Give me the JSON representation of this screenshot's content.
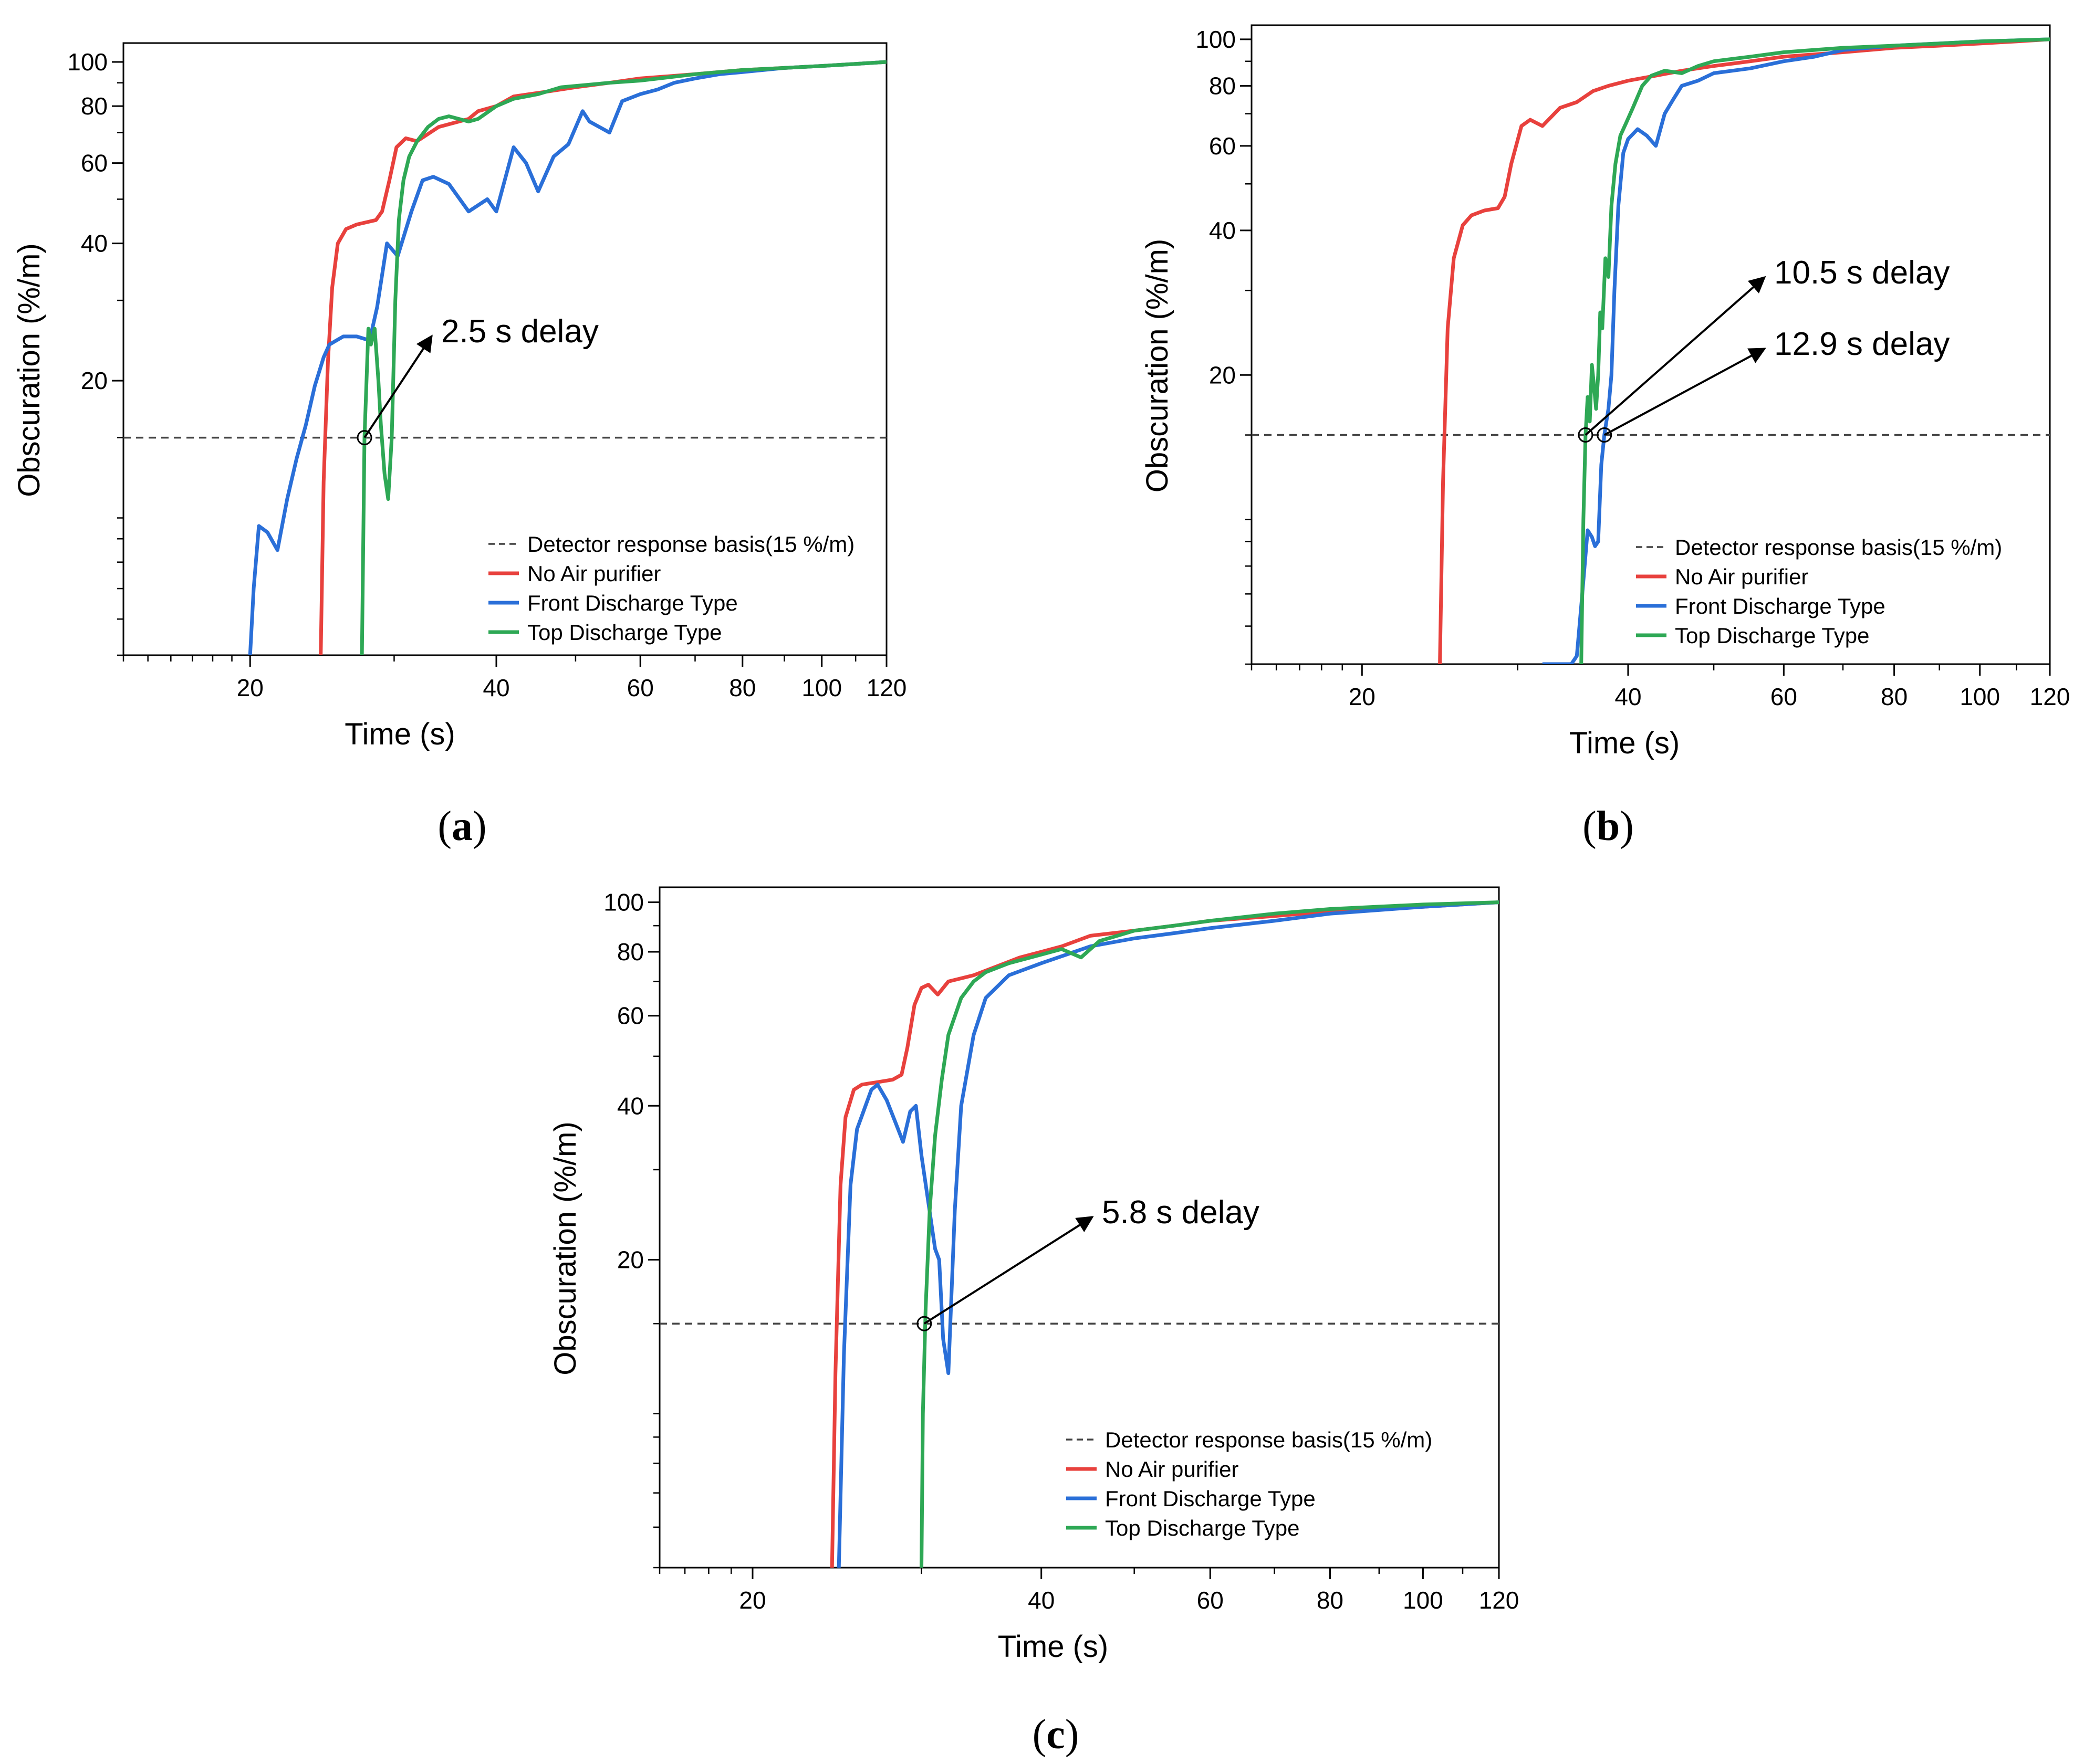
{
  "chart_data": [
    {
      "panel": "(a)",
      "type": "line",
      "xscale": "log",
      "yscale": "log",
      "xlim": [
        14,
        120
      ],
      "ylim": [
        5,
        110
      ],
      "xlabel": "Time (s)",
      "ylabel": "Obscuration (%/m)",
      "xticks": [
        20,
        40,
        60,
        80,
        100,
        120
      ],
      "yticks": [
        20,
        40,
        60,
        80,
        100
      ],
      "legend": "bottom-right",
      "threshold": {
        "name": "Detector response basis(15 %/m)",
        "value": 15
      },
      "annotations": [
        {
          "text": "2.5 s delay",
          "point": [
            27.6,
            15
          ],
          "text_at": [
            32,
            20
          ]
        }
      ],
      "series": [
        {
          "name": "No Air purifier",
          "color": "#e8413d",
          "x": [
            24.4,
            24.6,
            24.9,
            25.2,
            25.6,
            26.2,
            27.0,
            28.5,
            29.0,
            29.6,
            30.2,
            31.0,
            32,
            34,
            37,
            38,
            40,
            42,
            46,
            50,
            55,
            60,
            70,
            80,
            90,
            100,
            110,
            120
          ],
          "y": [
            5,
            12,
            22,
            32,
            40,
            43,
            44,
            45,
            47,
            55,
            65,
            68,
            67,
            72,
            75,
            78,
            80,
            84,
            86,
            88,
            90,
            92,
            94,
            96,
            97,
            98,
            99,
            100
          ]
        },
        {
          "name": "Front Discharge Type",
          "color": "#2a6fd8",
          "x": [
            20.0,
            20.2,
            20.5,
            21.0,
            21.6,
            22.2,
            22.8,
            23.4,
            24.0,
            24.6,
            25.0,
            26.0,
            27.0,
            28.0,
            28.6,
            29.4,
            30.3,
            31.5,
            32.5,
            33.5,
            35.0,
            37.0,
            39.0,
            40.0,
            42.0,
            43.5,
            45.0,
            47.0,
            49.0,
            51.0,
            52.0,
            55.0,
            57.0,
            60.0,
            63.0,
            66.0,
            70.0,
            75.0,
            80.0,
            90.0,
            100.0,
            110.0,
            120.0
          ],
          "y": [
            5,
            7,
            9.6,
            9.3,
            8.5,
            11,
            13.5,
            16,
            19.5,
            22.5,
            24,
            25,
            25,
            24.5,
            29,
            40,
            37.5,
            47,
            55,
            56,
            54,
            47,
            50,
            47,
            65,
            60,
            52,
            62,
            66,
            78,
            74,
            70,
            82,
            85,
            87,
            90,
            92,
            94,
            95,
            97,
            98,
            99,
            100
          ]
        },
        {
          "name": "Top Discharge Type",
          "color": "#2ea855",
          "x": [
            27.4,
            27.6,
            27.9,
            28.1,
            28.4,
            28.7,
            28.9,
            29.2,
            29.5,
            29.8,
            30.1,
            30.4,
            30.8,
            31.3,
            32,
            33,
            34,
            35,
            37,
            38,
            40,
            42,
            45,
            48,
            55,
            60,
            70,
            80,
            90,
            100,
            110,
            120
          ],
          "y": [
            5,
            15,
            26,
            24,
            26,
            20,
            16,
            12.5,
            11,
            15,
            30,
            45,
            55,
            62,
            67,
            72,
            75,
            76,
            74,
            75,
            80,
            83,
            85,
            88,
            90,
            91,
            94,
            96,
            97,
            98,
            99,
            100
          ]
        }
      ]
    },
    {
      "panel": "(b)",
      "type": "line",
      "xscale": "log",
      "yscale": "log",
      "xlim": [
        15,
        120
      ],
      "ylim": [
        5,
        107
      ],
      "xlabel": "Time (s)",
      "ylabel": "Obscuration (%/m)",
      "xticks": [
        20,
        40,
        60,
        80,
        100,
        120
      ],
      "yticks": [
        20,
        40,
        60,
        80,
        100
      ],
      "legend": "bottom-right",
      "threshold": {
        "name": "Detector response basis(15 %/m)",
        "value": 15
      },
      "annotations": [
        {
          "text": "10.5 s delay",
          "point": [
            35.8,
            15
          ],
          "text_at": [
            50,
            25
          ]
        },
        {
          "text": "12.9 s delay",
          "point": [
            37.6,
            15
          ],
          "text_at": [
            50,
            18
          ]
        }
      ],
      "series": [
        {
          "name": "No Air purifier",
          "color": "#e8413d",
          "x": [
            24.5,
            24.7,
            25.0,
            25.4,
            26.0,
            26.6,
            27.5,
            28.5,
            29.0,
            29.5,
            30.3,
            31.0,
            32.0,
            33.5,
            35.0,
            36.5,
            38.0,
            40.0,
            43.0,
            46.0,
            50.0,
            55.0,
            60.0,
            70.0,
            80.0,
            90.0,
            100.0,
            110.0,
            120.0
          ],
          "y": [
            5,
            12,
            25,
            35,
            41,
            43,
            44,
            44.5,
            47,
            55,
            66,
            68,
            66,
            72,
            74,
            78,
            80,
            82,
            84,
            86,
            88,
            90,
            92,
            94,
            96,
            97,
            98,
            99,
            100
          ]
        },
        {
          "name": "Front Discharge Type",
          "color": "#2a6fd8",
          "x": [
            32.0,
            34.5,
            35.0,
            35.5,
            36.0,
            36.4,
            36.7,
            37.0,
            37.3,
            37.6,
            37.8,
            38.0,
            38.3,
            38.6,
            39.0,
            39.5,
            40.0,
            41.0,
            42.0,
            43.0,
            44.0,
            45.0,
            46.0,
            48.0,
            50.0,
            55.0,
            60.0,
            65.0,
            70.0,
            80.0,
            100.0,
            120.0
          ],
          "y": [
            5,
            5,
            5.2,
            7,
            9.5,
            9.2,
            8.8,
            9,
            13,
            15,
            16,
            17,
            20,
            30,
            45,
            58,
            62,
            65,
            63,
            60,
            70,
            75,
            80,
            82,
            85,
            87,
            90,
            92,
            95,
            97,
            99,
            100
          ]
        },
        {
          "name": "Top Discharge Type",
          "color": "#2ea855",
          "x": [
            35.4,
            35.6,
            35.8,
            36.0,
            36.2,
            36.4,
            36.6,
            36.8,
            37.0,
            37.2,
            37.4,
            37.7,
            38.0,
            38.3,
            38.7,
            39.2,
            39.8,
            40.5,
            41.5,
            42.5,
            44.0,
            46.0,
            48.0,
            50.0,
            55.0,
            60.0,
            70.0,
            80.0,
            90.0,
            100.0,
            120.0
          ],
          "y": [
            5,
            10,
            15,
            18,
            16,
            21,
            19,
            17,
            20,
            27,
            25,
            35,
            32,
            45,
            55,
            63,
            67,
            72,
            80,
            84,
            86,
            85,
            88,
            90,
            92,
            94,
            96,
            97,
            98,
            99,
            100
          ]
        }
      ]
    },
    {
      "panel": "(c)",
      "type": "line",
      "xscale": "log",
      "yscale": "log",
      "xlim": [
        16,
        120
      ],
      "ylim": [
        5,
        107
      ],
      "xlabel": "Time (s)",
      "ylabel": "Obscuration (%/m)",
      "xticks": [
        20,
        40,
        60,
        80,
        100,
        120
      ],
      "yticks": [
        20,
        40,
        60,
        80,
        100
      ],
      "legend": "bottom-right",
      "threshold": {
        "name": "Detector response basis(15 %/m)",
        "value": 15
      },
      "annotations": [
        {
          "text": "5.8 s delay",
          "point": [
            30.2,
            15
          ],
          "text_at": [
            43,
            18
          ]
        }
      ],
      "series": [
        {
          "name": "No Air purifier",
          "color": "#e8413d",
          "x": [
            24.2,
            24.4,
            24.7,
            25.0,
            25.5,
            26.0,
            27.0,
            28.0,
            28.6,
            29.0,
            29.5,
            30.0,
            30.5,
            31.2,
            32.0,
            34.0,
            36.0,
            38.0,
            40.0,
            42.0,
            45.0,
            50.0,
            55.0,
            60.0,
            70.0,
            80.0,
            100.0,
            120.0
          ],
          "y": [
            5,
            12,
            28,
            38,
            43,
            44,
            44.5,
            45,
            46,
            52,
            63,
            68,
            69,
            66,
            70,
            72,
            75,
            78,
            80,
            82,
            86,
            88,
            90,
            92,
            94,
            96,
            98,
            100
          ]
        },
        {
          "name": "Front Discharge Type",
          "color": "#2a6fd8",
          "x": [
            24.6,
            24.9,
            25.3,
            25.7,
            26.1,
            26.6,
            27.0,
            27.6,
            28.2,
            28.7,
            29.2,
            29.6,
            30.0,
            30.4,
            31.0,
            31.3,
            31.6,
            32.0,
            32.5,
            33.0,
            34.0,
            35.0,
            37.0,
            40.0,
            45.0,
            50.0,
            55.0,
            60.0,
            70.0,
            80.0,
            100.0,
            120.0
          ],
          "y": [
            5,
            13,
            28,
            36,
            39,
            43,
            44,
            41,
            37,
            34,
            39,
            40,
            32,
            27,
            21,
            20,
            14,
            12,
            25,
            40,
            55,
            65,
            72,
            76,
            82,
            85,
            87,
            89,
            92,
            95,
            98,
            100
          ]
        },
        {
          "name": "Top Discharge Type",
          "color": "#2ea855",
          "x": [
            30.0,
            30.1,
            30.3,
            30.6,
            31.0,
            31.5,
            32.0,
            33.0,
            34.0,
            35.0,
            37.0,
            40.0,
            42.0,
            44.0,
            46.0,
            48.0,
            50.0,
            55.0,
            60.0,
            70.0,
            80.0,
            100.0,
            120.0
          ],
          "y": [
            5,
            10,
            16,
            25,
            35,
            45,
            55,
            65,
            70,
            73,
            76,
            79,
            81,
            78,
            84,
            86,
            88,
            90,
            92,
            95,
            97,
            99,
            100
          ]
        }
      ]
    }
  ]
}
